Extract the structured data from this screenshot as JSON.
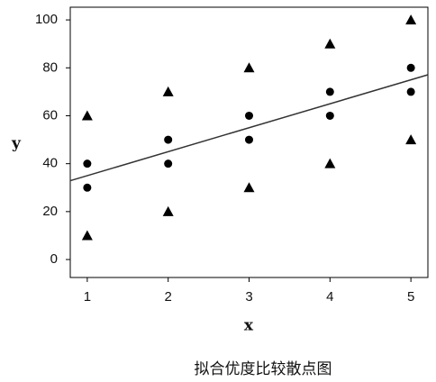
{
  "chart_data": {
    "type": "scatter",
    "caption": "拟合优度比较散点图",
    "xlabel": "x",
    "ylabel": "y",
    "xlim": [
      0.79,
      5.21
    ],
    "ylim": [
      -7.5,
      105.3
    ],
    "xticks": [
      1,
      2,
      3,
      4,
      5
    ],
    "yticks": [
      0,
      20,
      40,
      60,
      80,
      100
    ],
    "series": [
      {
        "marker": "triangle",
        "color": "#000000",
        "x": [
          1,
          1,
          2,
          2,
          3,
          3,
          4,
          4,
          5,
          5
        ],
        "values": [
          60,
          10,
          70,
          20,
          80,
          30,
          90,
          40,
          100,
          50
        ]
      },
      {
        "marker": "circle",
        "color": "#000000",
        "x": [
          1,
          1,
          2,
          2,
          3,
          3,
          4,
          4,
          5,
          5
        ],
        "values": [
          40,
          30,
          50,
          40,
          60,
          50,
          70,
          60,
          80,
          70
        ]
      },
      {
        "marker": "line",
        "color": "#333333",
        "x": [
          0.79,
          5.21
        ],
        "values": [
          32.9,
          77.1
        ]
      }
    ]
  }
}
